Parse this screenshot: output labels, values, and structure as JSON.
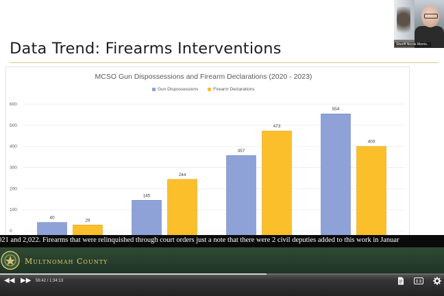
{
  "slide": {
    "title": "Data Trend: Firearms Interventions"
  },
  "chart_data": {
    "type": "bar",
    "title": "MCSO Gun Dispossessions and Firearm Declarations (2020 - 2023)",
    "categories": [
      "2020",
      "2021",
      "2022",
      "2023"
    ],
    "series": [
      {
        "name": "Gun Dispossessions",
        "color": "#8fa2d8",
        "values": [
          40,
          145,
          357,
          554
        ]
      },
      {
        "name": "Firearm Declarations",
        "color": "#fbbf2c",
        "values": [
          28,
          244,
          473,
          400
        ]
      }
    ],
    "yticks": [
      0,
      100,
      200,
      300,
      400,
      500,
      600
    ],
    "ylim": [
      0,
      600
    ],
    "grid": true,
    "legend_position": "top-center",
    "xlabel": "",
    "ylabel": ""
  },
  "webcam": {
    "name": "Sheriff Nicole Morris..."
  },
  "caption": {
    "text": "021 and 2,022. Firearms that were relinquished through court orders just a note that there were 2 civil deputies added to this work in Januar"
  },
  "banner": {
    "text": "Multnomah County"
  },
  "player": {
    "time": "56:42 / 1:34:13",
    "progress": 0.6,
    "icons": {
      "rewind": "rewind-icon",
      "forward": "fast-forward-icon",
      "transcript": "document-icon",
      "captions": "captions-icon",
      "settings": "gear-icon"
    }
  }
}
